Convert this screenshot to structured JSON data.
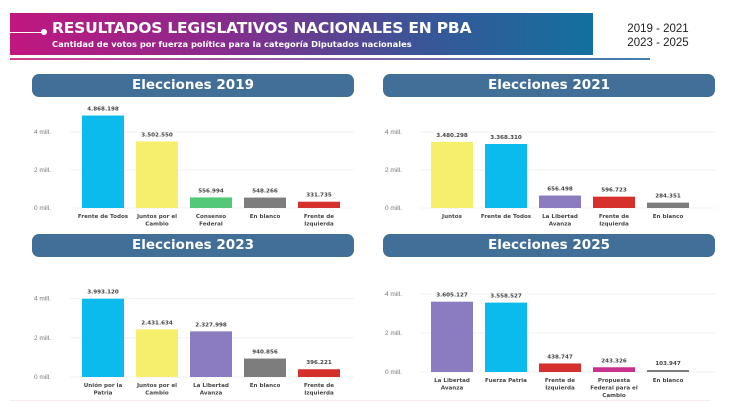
{
  "header": {
    "title": "RESULTADOS LEGISLATIVOS NACIONALES EN PBA",
    "subtitle": "Cantidad de votos por fuerza política para la categoría Diputados nacionales",
    "years_line1": "2019 - 2021",
    "years_line2": "2023 - 2025",
    "colors": {
      "gradient_start": "#c1177f",
      "gradient_end": "#12709f"
    }
  },
  "panel_title_color": "#426f98",
  "chart_data": [
    {
      "type": "bar",
      "title": "Elecciones 2019",
      "xlabel": "",
      "ylabel": "",
      "ylim": [
        0,
        5000000
      ],
      "yticks": [
        0,
        2000000,
        4000000
      ],
      "ytick_labels": [
        "0 mill.",
        "2 mill.",
        "4 mill."
      ],
      "grid": true,
      "categories": [
        [
          "Frente de Todos"
        ],
        [
          "Juntos por el",
          "Cambio"
        ],
        [
          "Consenso",
          "Federal"
        ],
        [
          "En blanco"
        ],
        [
          "Frente de",
          "Izquierda"
        ]
      ],
      "values": [
        4868198,
        3502550,
        556994,
        548266,
        331735
      ],
      "value_labels": [
        "4.868.198",
        "3.502.550",
        "556.994",
        "548.266",
        "331.735"
      ],
      "colors": [
        "#0cbbee",
        "#f6ef6d",
        "#52c878",
        "#7d7d7d",
        "#d6302d"
      ]
    },
    {
      "type": "bar",
      "title": "Elecciones 2021",
      "xlabel": "",
      "ylabel": "",
      "ylim": [
        0,
        5000000
      ],
      "yticks": [
        0,
        2000000,
        4000000
      ],
      "ytick_labels": [
        "0 mill.",
        "2 mill.",
        "4 mill."
      ],
      "grid": true,
      "categories": [
        [
          "Juntos"
        ],
        [
          "Frente de Todos"
        ],
        [
          "La Libertad",
          "Avanza"
        ],
        [
          "Frente de",
          "Izquierda"
        ],
        [
          "En blanco"
        ]
      ],
      "values": [
        3480298,
        3368310,
        656498,
        596723,
        284351
      ],
      "value_labels": [
        "3.480.298",
        "3.368.310",
        "656.498",
        "596.723",
        "284.351"
      ],
      "colors": [
        "#f6ef6d",
        "#0cbbee",
        "#8b7cc1",
        "#d6302d",
        "#7d7d7d"
      ]
    },
    {
      "type": "bar",
      "title": "Elecciones 2023",
      "xlabel": "",
      "ylabel": "",
      "ylim": [
        0,
        5000000
      ],
      "yticks": [
        0,
        2000000,
        4000000
      ],
      "ytick_labels": [
        "0 mill.",
        "2 mill.",
        "4 mill."
      ],
      "grid": true,
      "categories": [
        [
          "Unión por la",
          "Patria"
        ],
        [
          "Juntos por el",
          "Cambio"
        ],
        [
          "La Libertad",
          "Avanza"
        ],
        [
          "En blanco"
        ],
        [
          "Frente de",
          "Izquierda"
        ]
      ],
      "values": [
        3993120,
        2431634,
        2327998,
        940856,
        396221
      ],
      "value_labels": [
        "3.993.120",
        "2.431.634",
        "2.327.998",
        "940.856",
        "396.221"
      ],
      "colors": [
        "#0cbbee",
        "#f6ef6d",
        "#8b7cc1",
        "#7d7d7d",
        "#d6302d"
      ]
    },
    {
      "type": "bar",
      "title": "Elecciones 2025",
      "xlabel": "",
      "ylabel": "",
      "ylim": [
        0,
        5000000
      ],
      "yticks": [
        0,
        2000000,
        4000000
      ],
      "ytick_labels": [
        "0 mill.",
        "2 mill.",
        "4 mill."
      ],
      "grid": true,
      "categories": [
        [
          "La Libertad",
          "Avanza"
        ],
        [
          "Fuerza Patria"
        ],
        [
          "Frente de",
          "Izquierda"
        ],
        [
          "Propuesta",
          "Federal para el",
          "Cambio"
        ],
        [
          "En blanco"
        ]
      ],
      "values": [
        3605127,
        3558527,
        438747,
        243326,
        103947
      ],
      "value_labels": [
        "3.605.127",
        "3.558.527",
        "438.747",
        "243.326",
        "103.947"
      ],
      "colors": [
        "#8b7cc1",
        "#0cbbee",
        "#d6302d",
        "#c9318f",
        "#7d7d7d"
      ]
    }
  ]
}
